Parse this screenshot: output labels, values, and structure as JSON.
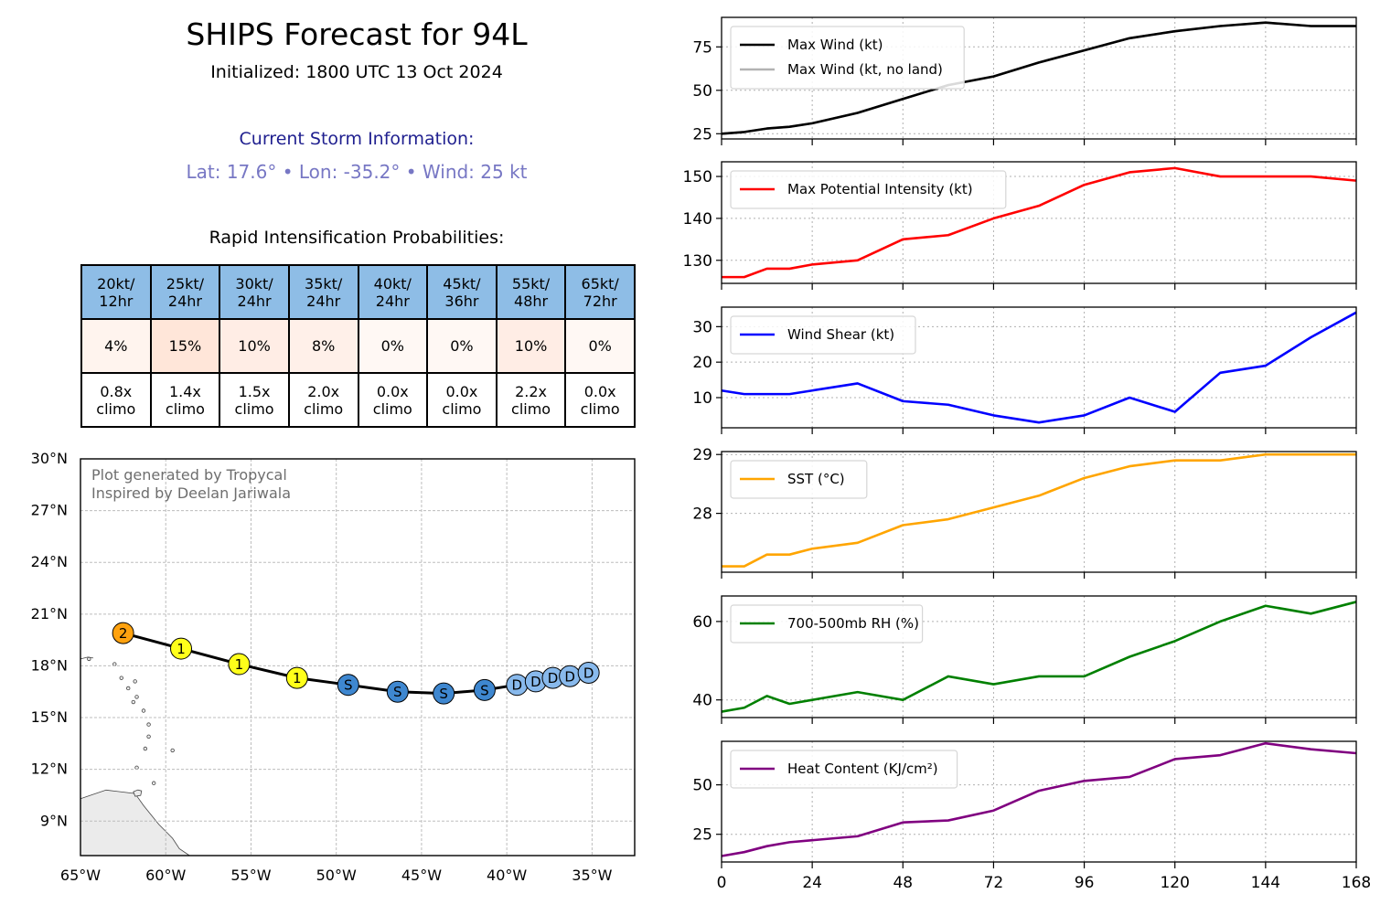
{
  "header": {
    "title": "SHIPS Forecast for 94L",
    "initialized": "Initialized: 1800 UTC 13 Oct 2024",
    "current_label": "Current Storm Information:",
    "current_info": "Lat: 17.6° • Lon: -35.2° • Wind: 25 kt",
    "ri_label": "Rapid Intensification Probabilities:"
  },
  "ri_table": {
    "columns": [
      {
        "kt": "20kt/",
        "hr": "12hr",
        "prob": "4%",
        "climo_x": "0.8x",
        "climo": "climo",
        "cell_color": "#fff4ee"
      },
      {
        "kt": "25kt/",
        "hr": "24hr",
        "prob": "15%",
        "climo_x": "1.4x",
        "climo": "climo",
        "cell_color": "#ffe6d9"
      },
      {
        "kt": "30kt/",
        "hr": "24hr",
        "prob": "10%",
        "climo_x": "1.5x",
        "climo": "climo",
        "cell_color": "#ffede5"
      },
      {
        "kt": "35kt/",
        "hr": "24hr",
        "prob": "8%",
        "climo_x": "2.0x",
        "climo": "climo",
        "cell_color": "#fff0e9"
      },
      {
        "kt": "40kt/",
        "hr": "24hr",
        "prob": "0%",
        "climo_x": "0.0x",
        "climo": "climo",
        "cell_color": "#fff8f4"
      },
      {
        "kt": "45kt/",
        "hr": "36hr",
        "prob": "0%",
        "climo_x": "0.0x",
        "climo": "climo",
        "cell_color": "#fff8f4"
      },
      {
        "kt": "55kt/",
        "hr": "48hr",
        "prob": "10%",
        "climo_x": "2.2x",
        "climo": "climo",
        "cell_color": "#ffede5"
      },
      {
        "kt": "65kt/",
        "hr": "72hr",
        "prob": "0%",
        "climo_x": "0.0x",
        "climo": "climo",
        "cell_color": "#fff8f4"
      }
    ]
  },
  "map": {
    "credit_line1": "Plot generated by Tropycal",
    "credit_line2": "Inspired by Deelan Jariwala",
    "lon_ticks": [
      -65,
      -60,
      -55,
      -50,
      -45,
      -40,
      -35
    ],
    "lon_labels": [
      "65°W",
      "60°W",
      "55°W",
      "50°W",
      "45°W",
      "40°W",
      "35°W"
    ],
    "lat_ticks": [
      9,
      12,
      15,
      18,
      21,
      24,
      27,
      30
    ],
    "lat_labels": [
      "9°N",
      "12°N",
      "15°N",
      "18°N",
      "21°N",
      "24°N",
      "27°N",
      "30°N"
    ],
    "extent": {
      "lon": [
        -65,
        -32.5
      ],
      "lat": [
        7,
        30
      ]
    },
    "land_color": "#ebebeb",
    "category_colors": {
      "D": "#88b9ec",
      "S": "#3e87d0",
      "1": "#ffff1a",
      "2": "#ffa20f"
    },
    "track": [
      {
        "hour": 0,
        "lat": 17.6,
        "lon": -35.2,
        "cat": "D"
      },
      {
        "hour": 6,
        "lat": 17.4,
        "lon": -36.3,
        "cat": "D"
      },
      {
        "hour": 12,
        "lat": 17.3,
        "lon": -37.3,
        "cat": "D"
      },
      {
        "hour": 18,
        "lat": 17.1,
        "lon": -38.3,
        "cat": "D"
      },
      {
        "hour": 24,
        "lat": 16.9,
        "lon": -39.4,
        "cat": "D"
      },
      {
        "hour": 36,
        "lat": 16.6,
        "lon": -41.3,
        "cat": "S"
      },
      {
        "hour": 48,
        "lat": 16.4,
        "lon": -43.7,
        "cat": "S"
      },
      {
        "hour": 60,
        "lat": 16.5,
        "lon": -46.4,
        "cat": "S"
      },
      {
        "hour": 72,
        "lat": 16.9,
        "lon": -49.3,
        "cat": "S"
      },
      {
        "hour": 84,
        "lat": 17.3,
        "lon": -52.3,
        "cat": "1"
      },
      {
        "hour": 96,
        "lat": 18.1,
        "lon": -55.7,
        "cat": "1"
      },
      {
        "hour": 108,
        "lat": 19.0,
        "lon": -59.1,
        "cat": "1"
      },
      {
        "hour": 120,
        "lat": 19.9,
        "lon": -62.5,
        "cat": "2"
      }
    ]
  },
  "chart_data": [
    {
      "type": "line",
      "x": [
        0,
        6,
        12,
        18,
        24,
        36,
        48,
        60,
        72,
        84,
        96,
        108,
        120,
        132,
        144,
        156,
        168
      ],
      "xlim": [
        0,
        168
      ],
      "xticks": [
        0,
        24,
        48,
        72,
        96,
        120,
        144,
        168
      ],
      "ylim": [
        22,
        92
      ],
      "yticks": [
        25,
        50,
        75
      ],
      "grid": true,
      "legend": "top-left",
      "series": [
        {
          "name": "Max Wind (kt)",
          "color": "#000000",
          "values": [
            25,
            26,
            28,
            29,
            31,
            37,
            45,
            53,
            58,
            66,
            73,
            80,
            84,
            87,
            89,
            87,
            87
          ]
        },
        {
          "name": "Max Wind (kt, no land)",
          "color": "#b3b3b3",
          "values": [
            25,
            26,
            28,
            29,
            31,
            37,
            45,
            53,
            58,
            66,
            73,
            80,
            84,
            87,
            89,
            87,
            87
          ]
        }
      ]
    },
    {
      "type": "line",
      "x": [
        0,
        6,
        12,
        18,
        24,
        36,
        48,
        60,
        72,
        84,
        96,
        108,
        120,
        132,
        144,
        156,
        168
      ],
      "xlim": [
        0,
        168
      ],
      "xticks": [
        0,
        24,
        48,
        72,
        96,
        120,
        144,
        168
      ],
      "ylim": [
        124.5,
        153.5
      ],
      "yticks": [
        130,
        140,
        150
      ],
      "grid": true,
      "legend": "top-left",
      "series": [
        {
          "name": "Max Potential Intensity (kt)",
          "color": "#ff0000",
          "values": [
            126,
            126,
            128,
            128,
            129,
            130,
            135,
            136,
            140,
            143,
            148,
            151,
            152,
            150,
            150,
            150,
            149
          ]
        }
      ]
    },
    {
      "type": "line",
      "x": [
        0,
        6,
        12,
        18,
        24,
        36,
        48,
        60,
        72,
        84,
        96,
        108,
        120,
        132,
        144,
        156,
        168
      ],
      "xlim": [
        0,
        168
      ],
      "xticks": [
        0,
        24,
        48,
        72,
        96,
        120,
        144,
        168
      ],
      "ylim": [
        1.5,
        35.5
      ],
      "yticks": [
        10,
        20,
        30
      ],
      "grid": true,
      "legend": "top-left",
      "series": [
        {
          "name": "Wind Shear (kt)",
          "color": "#0000ff",
          "values": [
            12,
            11,
            11,
            11,
            12,
            14,
            9,
            8,
            5,
            3,
            5,
            10,
            6,
            17,
            19,
            27,
            34
          ]
        }
      ]
    },
    {
      "type": "line",
      "x": [
        0,
        6,
        12,
        18,
        24,
        36,
        48,
        60,
        72,
        84,
        96,
        108,
        120,
        132,
        144,
        156,
        168
      ],
      "xlim": [
        0,
        168
      ],
      "xticks": [
        0,
        24,
        48,
        72,
        96,
        120,
        144,
        168
      ],
      "ylim": [
        27.0,
        29.05
      ],
      "yticks": [
        28,
        29
      ],
      "grid": true,
      "legend": "top-left",
      "series": [
        {
          "name": "SST (°C)",
          "color": "#ffa500",
          "values": [
            27.1,
            27.1,
            27.3,
            27.3,
            27.4,
            27.5,
            27.8,
            27.9,
            28.1,
            28.3,
            28.6,
            28.8,
            28.9,
            28.9,
            29.0,
            29.0,
            29.0
          ]
        }
      ]
    },
    {
      "type": "line",
      "x": [
        0,
        6,
        12,
        18,
        24,
        36,
        48,
        60,
        72,
        84,
        96,
        108,
        120,
        132,
        144,
        156,
        168
      ],
      "xlim": [
        0,
        168
      ],
      "xticks": [
        0,
        24,
        48,
        72,
        96,
        120,
        144,
        168
      ],
      "ylim": [
        35.5,
        66.5
      ],
      "yticks": [
        40,
        60
      ],
      "grid": true,
      "legend": "top-left",
      "series": [
        {
          "name": "700-500mb RH (%)",
          "color": "#008000",
          "values": [
            37,
            38,
            41,
            39,
            40,
            42,
            40,
            46,
            44,
            46,
            46,
            51,
            55,
            60,
            64,
            62,
            65
          ]
        }
      ]
    },
    {
      "type": "line",
      "x": [
        0,
        6,
        12,
        18,
        24,
        36,
        48,
        60,
        72,
        84,
        96,
        108,
        120,
        132,
        144,
        156,
        168
      ],
      "xlim": [
        0,
        168
      ],
      "xticks": [
        0,
        24,
        48,
        72,
        96,
        120,
        144,
        168
      ],
      "ylim": [
        11,
        72
      ],
      "yticks": [
        25,
        50
      ],
      "grid": true,
      "legend": "top-left",
      "series": [
        {
          "name": "Heat Content (KJ/cm²)",
          "color": "#800080",
          "values": [
            14,
            16,
            19,
            21,
            22,
            24,
            31,
            32,
            37,
            47,
            52,
            54,
            63,
            65,
            71,
            68,
            66
          ]
        }
      ]
    }
  ]
}
